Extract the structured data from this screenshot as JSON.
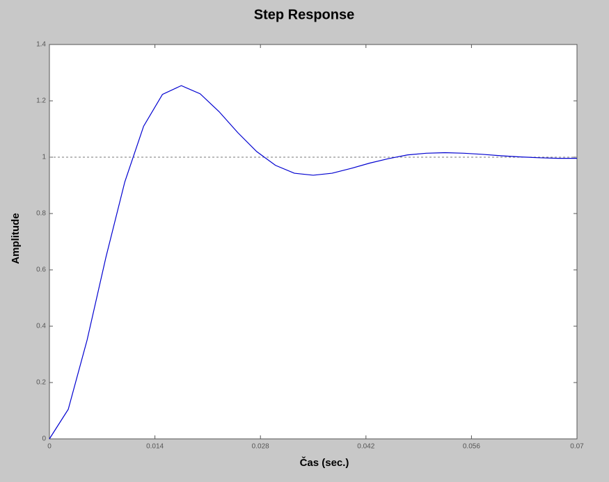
{
  "chart_data": {
    "type": "line",
    "title": "Step Response",
    "x_label": "Čas (sec.)",
    "y_label": "Amplitude",
    "x": [
      0,
      0.0025,
      0.005,
      0.0075,
      0.01,
      0.0125,
      0.015,
      0.0175,
      0.02,
      0.0225,
      0.025,
      0.0275,
      0.03,
      0.0325,
      0.035,
      0.0375,
      0.04,
      0.0425,
      0.045,
      0.0475,
      0.05,
      0.0525,
      0.055,
      0.0575,
      0.06,
      0.0625,
      0.065,
      0.0675,
      0.07
    ],
    "series": [
      {
        "color": "#0000d0",
        "values": [
          0,
          0.105,
          0.351,
          0.645,
          0.912,
          1.11,
          1.223,
          1.254,
          1.225,
          1.162,
          1.087,
          1.02,
          0.971,
          0.943,
          0.936,
          0.943,
          0.96,
          0.979,
          0.995,
          1.008,
          1.014,
          1.016,
          1.014,
          1.01,
          1.005,
          1.001,
          0.998,
          0.996,
          0.996
        ]
      }
    ],
    "reference": 1,
    "xlim": [
      0,
      0.07
    ],
    "xticks": [
      0,
      0.014,
      0.028,
      0.042,
      0.056,
      0.07
    ],
    "ylim": [
      0,
      1.4
    ],
    "yticks": [
      0,
      0.2,
      0.4,
      0.6,
      0.8,
      1,
      1.2,
      1.4
    ]
  }
}
